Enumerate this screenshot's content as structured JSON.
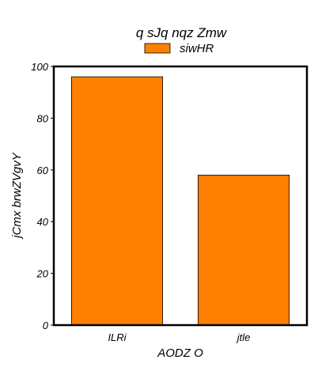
{
  "chart_data": {
    "type": "bar",
    "title": "q sJq nqz Zmw",
    "xlabel": "AODZ O",
    "ylabel": "jCmx brwZVgvY",
    "categories": [
      "ILRi",
      "jtle"
    ],
    "series": [
      {
        "name": "siwHR",
        "values": [
          96,
          58
        ],
        "color": "#ff8000"
      }
    ],
    "ylim": [
      0,
      100
    ],
    "yticks": [
      0,
      20,
      40,
      60,
      80,
      100
    ],
    "grid": false,
    "legend_position": "top-center"
  }
}
